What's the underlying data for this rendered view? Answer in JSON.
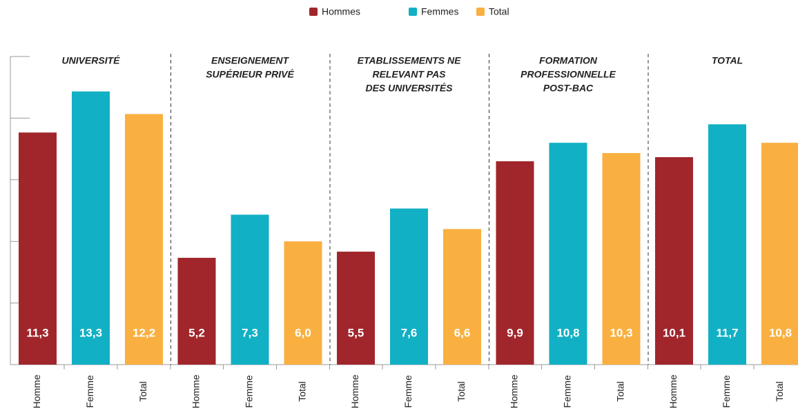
{
  "chart_data": {
    "type": "grouped_bar",
    "categories": [
      [
        "UNIVERSITÉ"
      ],
      [
        "ENSEIGNEMENT",
        "SUPÉRIEUR PRIVÉ"
      ],
      [
        "ETABLISSEMENTS NE",
        "RELEVANT PAS",
        "DES UNIVERSITÉS"
      ],
      [
        "FORMATION",
        "PROFESSIONNELLE",
        "POST-BAC"
      ],
      [
        "TOTAL"
      ]
    ],
    "bar_labels": [
      "Homme",
      "Femme",
      "Total"
    ],
    "series": [
      {
        "name": "Hommes",
        "color": "#a0262c",
        "values": [
          11.3,
          5.2,
          5.5,
          9.9,
          10.1
        ],
        "value_labels": [
          "11,3",
          "5,2",
          "5,5",
          "9,9",
          "10,1"
        ]
      },
      {
        "name": "Femmes",
        "color": "#12b0c4",
        "values": [
          13.3,
          7.3,
          7.6,
          10.8,
          11.7
        ],
        "value_labels": [
          "13,3",
          "7,3",
          "7,6",
          "10,8",
          "11,7"
        ]
      },
      {
        "name": "Total",
        "color": "#f9b040",
        "values": [
          12.2,
          6.0,
          6.6,
          10.3,
          10.8
        ],
        "value_labels": [
          "12,2",
          "6,0",
          "6,6",
          "10,3",
          "10,8"
        ]
      }
    ],
    "ylim": [
      0,
      15
    ],
    "yticks": [
      0,
      3,
      6,
      9,
      12,
      15
    ],
    "legend": "top"
  }
}
